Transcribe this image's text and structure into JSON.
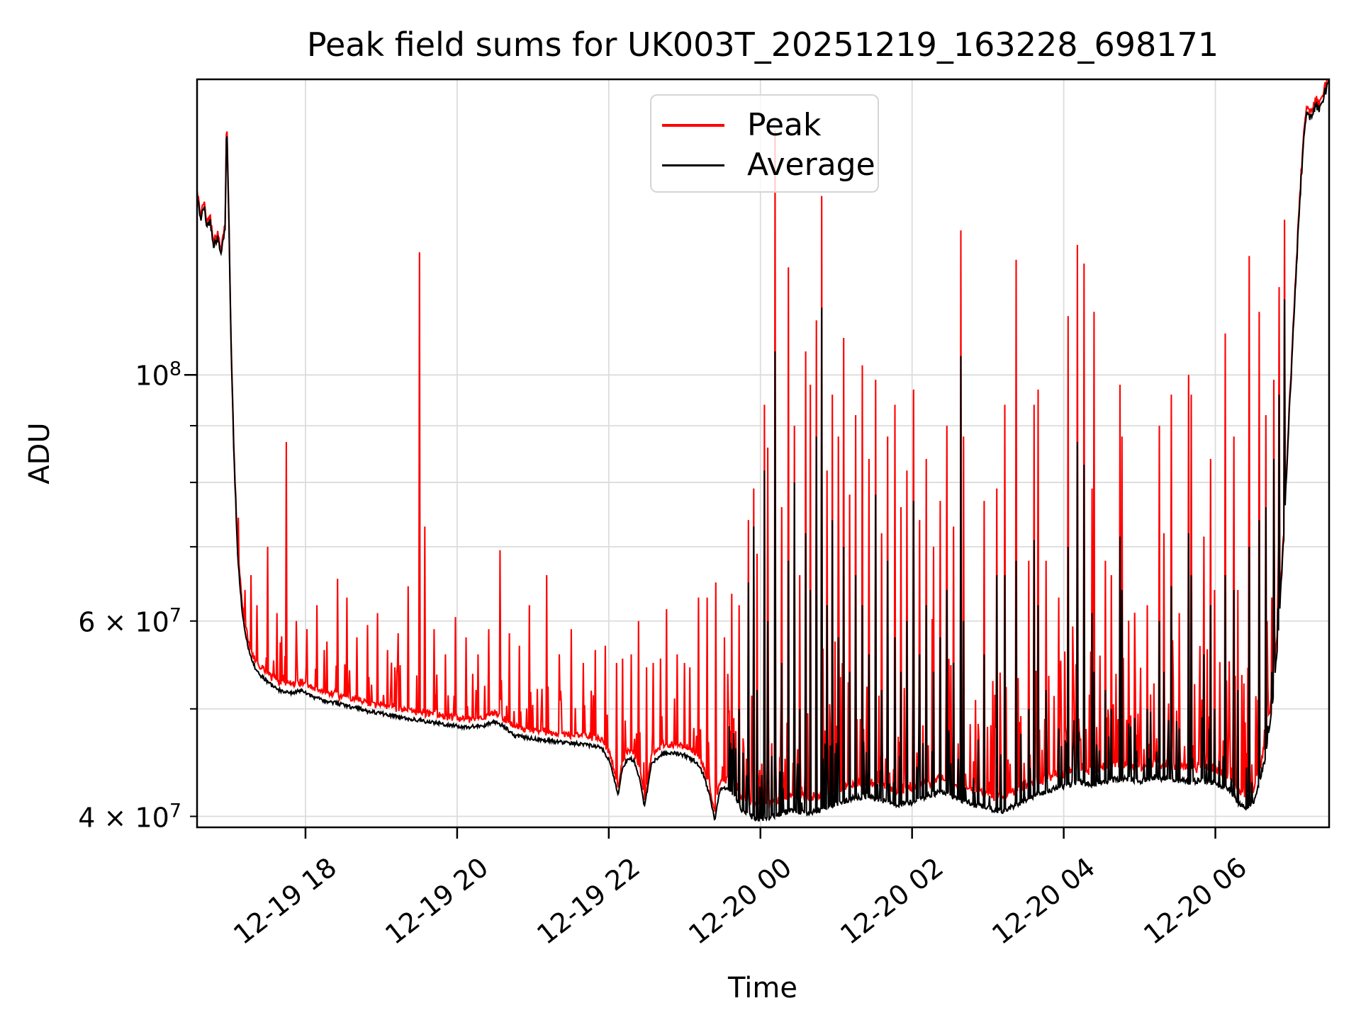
{
  "chart_data": {
    "type": "line",
    "title": "Peak field sums for UK003T_20251219_163228_698171",
    "xlabel": "Time",
    "ylabel": "ADU",
    "grid": true,
    "grid_color": "#dcdcdc",
    "background": "#ffffff",
    "y_scale": "log",
    "xlim_hours": [
      16.57,
      31.5
    ],
    "ylim": [
      39100000.0,
      184700000.0
    ],
    "x_ticks": [
      {
        "t": 18,
        "label": "12-19 18"
      },
      {
        "t": 20,
        "label": "12-19 20"
      },
      {
        "t": 22,
        "label": "12-19 22"
      },
      {
        "t": 24,
        "label": "12-20 00"
      },
      {
        "t": 26,
        "label": "12-20 02"
      },
      {
        "t": 28,
        "label": "12-20 04"
      },
      {
        "t": 30,
        "label": "12-20 06"
      }
    ],
    "y_ticks": [
      {
        "value": 100000000.0,
        "kind": "major",
        "text": "10",
        "sup": "8"
      },
      {
        "value": 90000000.0,
        "kind": "minor",
        "text": "",
        "sup": ""
      },
      {
        "value": 80000000.0,
        "kind": "minor",
        "text": "",
        "sup": ""
      },
      {
        "value": 70000000.0,
        "kind": "minor",
        "text": "",
        "sup": ""
      },
      {
        "value": 60000000.0,
        "kind": "minor",
        "text": "6 × 10",
        "sup": "7"
      },
      {
        "value": 50000000.0,
        "kind": "minor",
        "text": "",
        "sup": ""
      },
      {
        "value": 40000000.0,
        "kind": "minor",
        "text": "4 × 10",
        "sup": "7"
      }
    ],
    "legend": {
      "position": "upper center",
      "entries": [
        {
          "label": "Peak",
          "color": "#ff0000"
        },
        {
          "label": "Average",
          "color": "#000000"
        }
      ]
    },
    "series": [
      {
        "name": "Peak",
        "color": "#ff0000",
        "linewidth": 2.1
      },
      {
        "name": "Average",
        "color": "#000000",
        "linewidth": 2.1
      }
    ],
    "average_keypoints": [
      [
        16.57,
        145000000.0
      ],
      [
        16.62,
        138000000.0
      ],
      [
        16.66,
        142000000.0
      ],
      [
        16.7,
        136000000.0
      ],
      [
        16.74,
        138000000.0
      ],
      [
        16.79,
        131000000.0
      ],
      [
        16.84,
        133000000.0
      ],
      [
        16.88,
        129000000.0
      ],
      [
        16.92,
        133000000.0
      ],
      [
        16.94,
        136000000.0
      ],
      [
        16.96,
        169000000.0
      ],
      [
        16.99,
        138000000.0
      ],
      [
        17.02,
        105000000.0
      ],
      [
        17.06,
        83000000.0
      ],
      [
        17.11,
        68000000.0
      ],
      [
        17.17,
        60500000.0
      ],
      [
        17.25,
        56500000.0
      ],
      [
        17.33,
        54500000.0
      ],
      [
        17.42,
        53500000.0
      ],
      [
        17.52,
        52700000.0
      ],
      [
        17.65,
        52000000.0
      ],
      [
        17.8,
        51600000.0
      ],
      [
        17.95,
        52000000.0
      ],
      [
        18.1,
        51200000.0
      ],
      [
        18.35,
        50700000.0
      ],
      [
        18.6,
        50200000.0
      ],
      [
        18.85,
        49700000.0
      ],
      [
        19.1,
        49400000.0
      ],
      [
        19.35,
        49000000.0
      ],
      [
        19.6,
        48700000.0
      ],
      [
        19.85,
        48400000.0
      ],
      [
        20.1,
        48100000.0
      ],
      [
        20.35,
        48300000.0
      ],
      [
        20.5,
        48700000.0
      ],
      [
        20.62,
        48200000.0
      ],
      [
        20.75,
        47300000.0
      ],
      [
        21.0,
        47000000.0
      ],
      [
        21.3,
        46700000.0
      ],
      [
        21.6,
        46500000.0
      ],
      [
        21.9,
        46200000.0
      ],
      [
        22.02,
        44800000.0
      ],
      [
        22.08,
        43000000.0
      ],
      [
        22.12,
        41700000.0
      ],
      [
        22.18,
        44200000.0
      ],
      [
        22.26,
        45200000.0
      ],
      [
        22.34,
        44800000.0
      ],
      [
        22.42,
        43000000.0
      ],
      [
        22.47,
        40700000.0
      ],
      [
        22.56,
        44500000.0
      ],
      [
        22.68,
        45500000.0
      ],
      [
        22.85,
        45600000.0
      ],
      [
        23.0,
        45400000.0
      ],
      [
        23.15,
        44800000.0
      ],
      [
        23.25,
        43600000.0
      ],
      [
        23.33,
        41800000.0
      ],
      [
        23.4,
        39700000.0
      ],
      [
        23.46,
        42200000.0
      ],
      [
        23.56,
        42500000.0
      ],
      [
        23.66,
        41800000.0
      ],
      [
        23.76,
        40400000.0
      ],
      [
        23.88,
        40000000.0
      ],
      [
        24.0,
        39700000.0
      ],
      [
        24.2,
        40000000.0
      ],
      [
        24.4,
        40500000.0
      ],
      [
        24.6,
        40200000.0
      ],
      [
        24.8,
        40600000.0
      ],
      [
        25.0,
        41000000.0
      ],
      [
        25.2,
        41500000.0
      ],
      [
        25.4,
        41700000.0
      ],
      [
        25.6,
        41300000.0
      ],
      [
        25.8,
        41000000.0
      ],
      [
        26.0,
        41200000.0
      ],
      [
        26.2,
        41700000.0
      ],
      [
        26.4,
        42100000.0
      ],
      [
        26.6,
        41500000.0
      ],
      [
        26.8,
        41000000.0
      ],
      [
        27.0,
        40700000.0
      ],
      [
        27.2,
        40400000.0
      ],
      [
        27.4,
        41000000.0
      ],
      [
        27.6,
        41700000.0
      ],
      [
        27.8,
        42200000.0
      ],
      [
        28.0,
        42600000.0
      ],
      [
        28.2,
        43000000.0
      ],
      [
        28.4,
        42700000.0
      ],
      [
        28.6,
        43100000.0
      ],
      [
        28.8,
        43300000.0
      ],
      [
        29.0,
        43000000.0
      ],
      [
        29.2,
        43400000.0
      ],
      [
        29.4,
        43200000.0
      ],
      [
        29.6,
        43000000.0
      ],
      [
        29.8,
        43100000.0
      ],
      [
        30.0,
        42800000.0
      ],
      [
        30.15,
        42500000.0
      ],
      [
        30.3,
        41200000.0
      ],
      [
        30.4,
        40600000.0
      ],
      [
        30.5,
        41200000.0
      ],
      [
        30.58,
        43000000.0
      ],
      [
        30.66,
        45200000.0
      ],
      [
        30.74,
        49500000.0
      ],
      [
        30.82,
        57000000.0
      ],
      [
        30.9,
        71000000.0
      ],
      [
        30.98,
        94000000.0
      ],
      [
        31.06,
        122000000.0
      ],
      [
        31.13,
        150000000.0
      ],
      [
        31.18,
        168000000.0
      ],
      [
        31.22,
        173000000.0
      ],
      [
        31.27,
        170000000.0
      ],
      [
        31.32,
        175000000.0
      ],
      [
        31.38,
        174000000.0
      ],
      [
        31.44,
        179000000.0
      ],
      [
        31.5,
        185000000.0
      ]
    ],
    "spikes": [
      [
        17.2,
        64000000.0,
        0
      ],
      [
        17.28,
        66000000.0,
        0
      ],
      [
        17.36,
        62000000.0,
        0
      ],
      [
        17.5,
        70000000.0,
        0
      ],
      [
        17.62,
        61000000.0,
        0
      ],
      [
        17.75,
        87000000.0,
        0
      ],
      [
        17.88,
        60000000.0,
        0
      ],
      [
        18.02,
        59000000.0,
        0
      ],
      [
        18.15,
        62000000.0,
        0
      ],
      [
        18.28,
        57500000.0,
        0
      ],
      [
        18.42,
        65500000.0,
        0
      ],
      [
        18.55,
        63000000.0,
        0
      ],
      [
        18.68,
        58000000.0,
        0
      ],
      [
        18.82,
        59500000.0,
        0
      ],
      [
        18.95,
        61000000.0,
        0
      ],
      [
        19.08,
        56500000.0,
        0
      ],
      [
        19.22,
        58500000.0,
        0
      ],
      [
        19.35,
        64500000.0,
        0
      ],
      [
        19.5,
        129000000.0,
        0
      ],
      [
        19.57,
        73000000.0,
        0
      ],
      [
        19.7,
        59000000.0,
        0
      ],
      [
        19.85,
        56000000.0,
        0
      ],
      [
        19.98,
        60500000.0,
        0
      ],
      [
        20.12,
        58000000.0,
        0
      ],
      [
        20.28,
        56000000.0,
        0
      ],
      [
        20.42,
        59000000.0,
        0
      ],
      [
        20.57,
        69500000.0,
        0
      ],
      [
        20.69,
        58500000.0,
        0
      ],
      [
        20.82,
        57000000.0,
        0
      ],
      [
        20.95,
        62000000.0,
        0
      ],
      [
        21.18,
        66000000.0,
        0
      ],
      [
        21.35,
        56000000.0,
        0
      ],
      [
        21.51,
        59000000.0,
        0
      ],
      [
        21.66,
        55000000.0,
        0
      ],
      [
        21.82,
        56500000.0,
        0
      ],
      [
        21.95,
        57000000.0,
        0
      ],
      [
        22.1,
        55000000.0,
        0
      ],
      [
        22.18,
        55500000.0,
        0
      ],
      [
        22.3,
        56000000.0,
        0
      ],
      [
        22.39,
        60000000.0,
        0
      ],
      [
        22.5,
        54500000.0,
        0
      ],
      [
        22.59,
        55000000.0,
        0
      ],
      [
        22.68,
        55500000.0,
        0
      ],
      [
        22.76,
        61500000.0,
        0
      ],
      [
        22.9,
        56000000.0,
        0
      ],
      [
        23.0,
        55000000.0,
        0
      ],
      [
        23.07,
        54500000.0,
        0
      ],
      [
        23.18,
        63000000.0,
        0
      ],
      [
        23.3,
        63000000.0,
        0
      ],
      [
        23.41,
        65000000.0,
        0
      ],
      [
        23.53,
        58000000.0,
        0
      ],
      [
        23.62,
        63500000.0,
        46000000.0
      ],
      [
        23.72,
        62000000.0,
        50000000.0
      ],
      [
        23.84,
        74000000.0,
        65000000.0
      ],
      [
        23.91,
        79000000.0,
        73000000.0
      ],
      [
        23.96,
        69000000.0,
        52000000.0
      ],
      [
        24.05,
        94000000.0,
        82000000.0
      ],
      [
        24.1,
        86000000.0,
        60000000.0
      ],
      [
        24.19,
        166000000.0,
        105000000.0
      ],
      [
        24.28,
        76000000.0,
        55000000.0
      ],
      [
        24.37,
        125000000.0,
        68000000.0
      ],
      [
        24.45,
        90000000.0,
        80000000.0
      ],
      [
        24.52,
        66000000.0,
        50000000.0
      ],
      [
        24.6,
        105000000.0,
        72000000.0
      ],
      [
        24.66,
        98000000.0,
        64000000.0
      ],
      [
        24.74,
        112000000.0,
        88000000.0
      ],
      [
        24.81,
        145000000.0,
        115000000.0
      ],
      [
        24.88,
        82000000.0,
        62000000.0
      ],
      [
        24.95,
        96000000.0,
        74000000.0
      ],
      [
        25.03,
        88000000.0,
        58000000.0
      ],
      [
        25.1,
        108000000.0,
        70000000.0
      ],
      [
        25.18,
        78000000.0,
        54000000.0
      ],
      [
        25.26,
        92000000.0,
        66000000.0
      ],
      [
        25.34,
        102000000.0,
        62000000.0
      ],
      [
        25.43,
        84000000.0,
        56000000.0
      ],
      [
        25.52,
        99000000.0,
        78000000.0
      ],
      [
        25.6,
        72000000.0,
        52000000.0
      ],
      [
        25.68,
        88000000.0,
        68000000.0
      ],
      [
        25.77,
        94000000.0,
        58000000.0
      ],
      [
        25.85,
        76000000.0,
        54000000.0
      ],
      [
        25.93,
        82000000.0,
        60000000.0
      ],
      [
        26.02,
        97000000.0,
        77000000.0
      ],
      [
        26.1,
        74000000.0,
        56000000.0
      ],
      [
        26.19,
        84000000.0,
        62000000.0
      ],
      [
        26.28,
        70000000.0,
        54000000.0
      ],
      [
        26.37,
        77000000.0,
        58000000.0
      ],
      [
        26.46,
        90000000.0,
        64000000.0
      ],
      [
        26.55,
        73000000.0,
        55000000.0
      ],
      [
        26.64,
        135000000.0,
        104000000.0
      ],
      [
        26.68,
        88000000.0,
        60000000.0
      ],
      [
        26.95,
        77000000.0,
        56000000.0
      ],
      [
        27.12,
        79000000.0,
        66000000.0
      ],
      [
        27.22,
        94000000.0,
        66000000.0
      ],
      [
        27.37,
        127000000.0,
        68000000.0
      ],
      [
        27.54,
        68000000.0,
        50000000.0
      ],
      [
        27.61,
        94000000.0,
        71000000.0
      ],
      [
        27.66,
        97000000.0,
        62000000.0
      ],
      [
        27.77,
        68000000.0,
        52000000.0
      ],
      [
        27.93,
        63000000.0,
        48000000.0
      ],
      [
        28.06,
        113000000.0,
        70000000.0
      ],
      [
        28.18,
        131000000.0,
        87000000.0
      ],
      [
        28.27,
        126000000.0,
        83000000.0
      ],
      [
        28.37,
        79000000.0,
        61000000.0
      ],
      [
        28.4,
        114000000.0,
        54000000.0
      ],
      [
        28.55,
        68000000.0,
        52000000.0
      ],
      [
        28.63,
        66000000.0,
        50000000.0
      ],
      [
        28.74,
        98000000.0,
        71500000.0
      ],
      [
        28.77,
        88000000.0,
        64000000.0
      ],
      [
        28.94,
        53000000.0,
        46000000.0
      ],
      [
        29.1,
        62000000.0,
        50000000.0
      ],
      [
        29.26,
        90000000.0,
        60000000.0
      ],
      [
        29.32,
        72000000.0,
        54000000.0
      ],
      [
        29.42,
        96000000.0,
        64500000.0
      ],
      [
        29.52,
        61000000.0,
        48000000.0
      ],
      [
        29.65,
        100000000.0,
        72000000.0
      ],
      [
        29.68,
        96000000.0,
        66000000.0
      ],
      [
        29.85,
        71500000.0,
        56000000.0
      ],
      [
        29.94,
        84000000.0,
        62000000.0
      ],
      [
        29.99,
        64000000.0,
        50000000.0
      ],
      [
        30.13,
        109000000.0,
        66000000.0
      ],
      [
        30.24,
        88000000.0,
        64000000.0
      ],
      [
        30.3,
        64000000.0,
        52000000.0
      ],
      [
        30.45,
        128000000.0,
        70000000.0
      ],
      [
        30.58,
        114000000.0,
        74000000.0
      ],
      [
        30.67,
        92000000.0,
        76000000.0
      ],
      [
        30.77,
        99000000.0,
        84000000.0
      ],
      [
        30.84,
        120000000.0,
        96000000.0
      ],
      [
        30.91,
        138000000.0,
        117000000.0
      ]
    ],
    "texture": {
      "seed": 42,
      "samples": 1700,
      "head_end": 17.1,
      "head_noise": 0.008,
      "quiet": {
        "end": 23.55,
        "red_fringe": 1.018,
        "red_spike_prob": 0.1,
        "red_spike_min": 1.02,
        "red_spike_max": 1.1,
        "black_noise": 0.004
      },
      "dense": {
        "end": 30.85,
        "red_fringe": 1.03,
        "red_spike_prob": 0.16,
        "red_spike_min": 1.04,
        "red_spike_max": 1.3,
        "black_spike_prob": 0.13,
        "black_spike_min": 1.02,
        "black_spike_max": 1.15,
        "black_noise": 0.006
      },
      "tail_fringe": 1.012,
      "tail_noise": 0.01
    }
  }
}
